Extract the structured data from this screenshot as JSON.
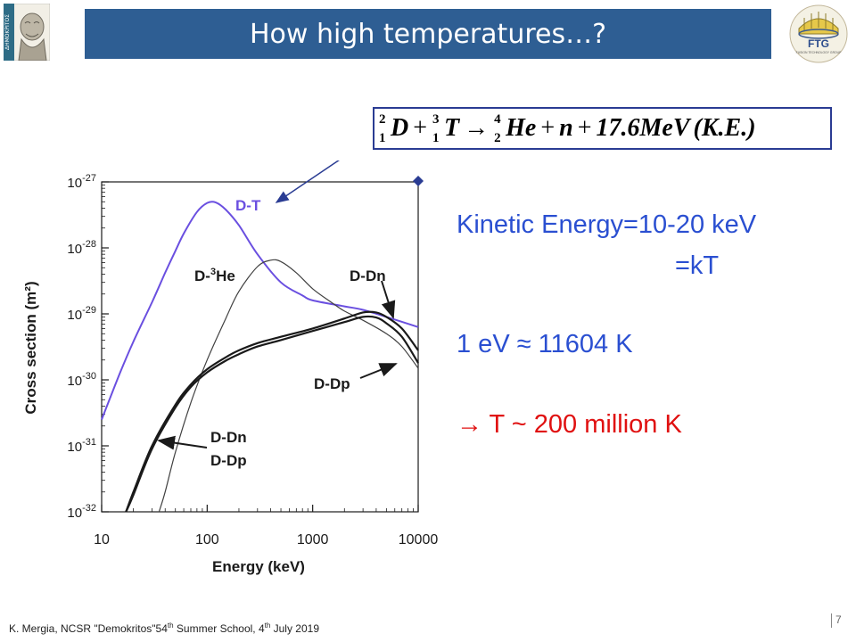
{
  "header": {
    "title": "How high temperatures…?",
    "left_logo_text": "ΔΗΜΟΚΡΙΤΟΣ",
    "right_logo_text": "FTG",
    "right_logo_subtext": "FUSION TECHNOLOGY GROUP",
    "bar_color": "#2e5e93"
  },
  "equation": {
    "d_mass": "2",
    "d_charge": "1",
    "d_symbol": "D",
    "t_mass": "3",
    "t_charge": "1",
    "t_symbol": "T",
    "he_mass": "4",
    "he_charge": "2",
    "he_symbol": "He",
    "plus": "+",
    "arrow": "→",
    "n_symbol": "n",
    "energy": "17.6MeV",
    "ke": "(K.E.)"
  },
  "side_text": {
    "kinetic_line1": "Kinetic Energy=10-20 keV",
    "kinetic_line2": "=kT",
    "ev_conversion": "1 eV ≈ 11604 K",
    "temperature": "→ T ~ 200 million K",
    "blue": "#2a4fd1",
    "red": "#e01010"
  },
  "footer": {
    "author": "K. Mergia, NCSR \"Demokritos\"54",
    "th1": "th",
    "school": " Summer School, 4",
    "th2": "th",
    "date": " July 2019",
    "page": "7"
  },
  "chart_data": {
    "type": "line",
    "xlabel": "Energy (keV)",
    "ylabel": "Cross section (m²)",
    "xscale": "log",
    "yscale": "log",
    "xlim": [
      10,
      10000
    ],
    "ylim": [
      1e-32,
      1e-27
    ],
    "x_ticks": [
      "10",
      "100",
      "1000",
      "10000"
    ],
    "y_ticks": [
      {
        "base": "10",
        "exp": "-32"
      },
      {
        "base": "10",
        "exp": "-31"
      },
      {
        "base": "10",
        "exp": "-30"
      },
      {
        "base": "10",
        "exp": "-29"
      },
      {
        "base": "10",
        "exp": "-28"
      },
      {
        "base": "10",
        "exp": "-27"
      }
    ],
    "series": [
      {
        "name": "D-T",
        "color": "#6a4fe0",
        "x": [
          10,
          15,
          20,
          30,
          40,
          50,
          60,
          80,
          100,
          120,
          150,
          200,
          300,
          500,
          800,
          1000,
          2000,
          3000,
          5000,
          10000
        ],
        "y": [
          2.5e-31,
          1.3e-30,
          3.8e-30,
          1.5e-29,
          4.2e-29,
          9e-29,
          1.65e-28,
          3.5e-28,
          4.8e-28,
          4.9e-28,
          3.8e-28,
          2.2e-28,
          8e-29,
          3e-29,
          1.9e-29,
          1.6e-29,
          1.3e-29,
          1.15e-29,
          9e-30,
          6.3e-30
        ]
      },
      {
        "name": "D-³He",
        "color": "#404040",
        "x": [
          35,
          40,
          50,
          70,
          100,
          150,
          200,
          300,
          400,
          500,
          700,
          1000,
          1500,
          2000,
          3000,
          5000,
          7000,
          10000
        ],
        "y": [
          1e-32,
          2e-32,
          8e-32,
          4.5e-31,
          2e-30,
          8.5e-30,
          2.2e-29,
          5.2e-29,
          6.5e-29,
          6.2e-29,
          4.2e-29,
          2.4e-29,
          1.5e-29,
          1.1e-29,
          8e-30,
          5e-30,
          3.2e-30,
          1.5e-30
        ]
      },
      {
        "name": "D-Dn",
        "color": "#1a1a1a",
        "x": [
          17,
          20,
          30,
          50,
          70,
          100,
          150,
          200,
          300,
          500,
          1000,
          2000,
          3000,
          4000,
          5000,
          7000,
          10000
        ],
        "y": [
          1e-32,
          2e-32,
          1e-31,
          4.2e-31,
          8.5e-31,
          1.45e-30,
          2.2e-30,
          2.8e-30,
          3.6e-30,
          4.5e-30,
          6e-30,
          8.5e-30,
          1.05e-29,
          1.05e-29,
          9e-30,
          6e-30,
          2.8e-30
        ]
      },
      {
        "name": "D-Dp",
        "color": "#1a1a1a",
        "x": [
          17,
          20,
          30,
          50,
          70,
          100,
          150,
          200,
          300,
          500,
          1000,
          2000,
          3000,
          4000,
          5000,
          7000,
          10000
        ],
        "y": [
          1e-32,
          1.8e-32,
          9e-32,
          3.8e-31,
          7.8e-31,
          1.3e-30,
          1.95e-30,
          2.45e-30,
          3.2e-30,
          4e-30,
          5.5e-30,
          7.5e-30,
          9e-30,
          8.8e-30,
          7.2e-30,
          4.5e-30,
          1.8e-30
        ]
      }
    ],
    "labels": {
      "dt": "D-T",
      "dhe_pre": "D-",
      "dhe_sup": "3",
      "dhe_post": "He",
      "ddn_right": "D-Dn",
      "ddp_right": "D-Dp",
      "ddn_left": "D-Dn",
      "ddp_left": "D-Dp"
    },
    "grid": false
  }
}
